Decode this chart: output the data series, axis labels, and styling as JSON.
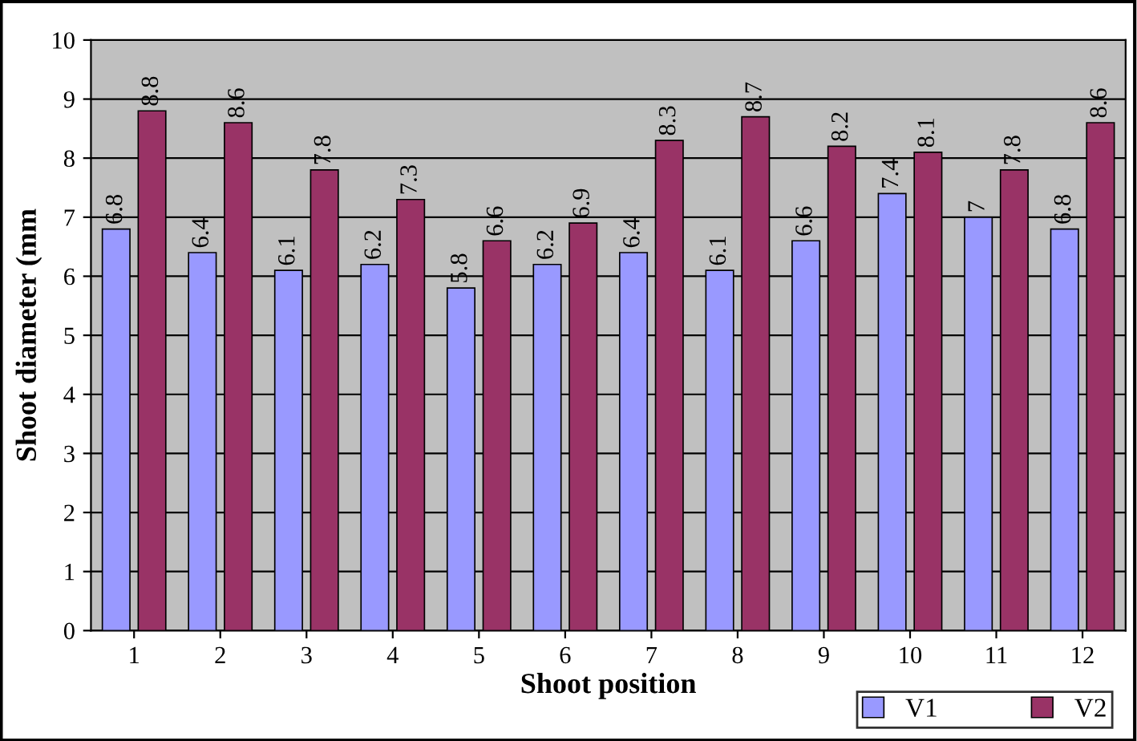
{
  "chart_data": {
    "type": "bar",
    "xlabel": "Shoot position",
    "ylabel": "Shoot diameter (mm",
    "categories": [
      "1",
      "2",
      "3",
      "4",
      "5",
      "6",
      "7",
      "8",
      "9",
      "10",
      "11",
      "12"
    ],
    "series": [
      {
        "name": "V1",
        "color": "#9999ff",
        "values": [
          6.8,
          6.4,
          6.1,
          6.2,
          5.8,
          6.2,
          6.4,
          6.1,
          6.6,
          7.4,
          7,
          6.8
        ]
      },
      {
        "name": "V2",
        "color": "#993366",
        "values": [
          8.8,
          8.6,
          7.8,
          7.3,
          6.6,
          6.9,
          8.3,
          8.7,
          8.2,
          8.1,
          7.8,
          8.6
        ]
      }
    ],
    "ylim": [
      0,
      10
    ],
    "yticks": [
      0,
      1,
      2,
      3,
      4,
      5,
      6,
      7,
      8,
      9,
      10
    ],
    "grid": "y",
    "data_labels": true,
    "legend": "bottom right"
  }
}
